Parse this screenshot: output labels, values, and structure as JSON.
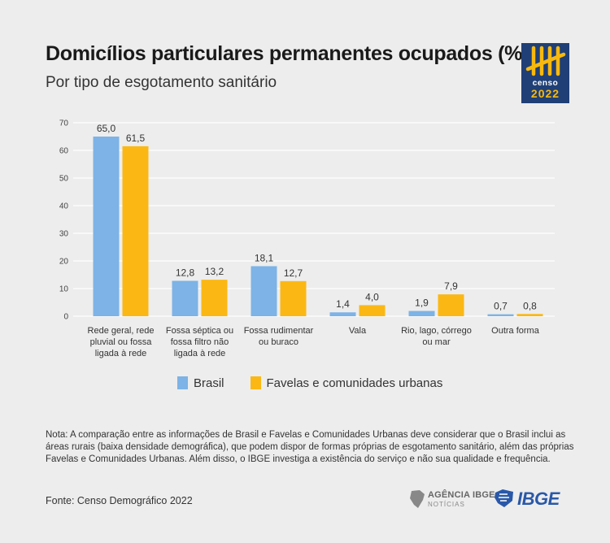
{
  "header": {
    "title": "Domicílios particulares permanentes ocupados (%)",
    "subtitle": "Por tipo de esgotamento sanitário"
  },
  "logo": {
    "censo_text": "censo",
    "censo_year": "2022"
  },
  "chart_data": {
    "type": "bar",
    "title": "Domicílios particulares permanentes ocupados (%)",
    "subtitle": "Por tipo de esgotamento sanitário",
    "categories": [
      [
        "Rede geral, rede",
        "pluvial ou fossa",
        "ligada à rede"
      ],
      [
        "Fossa séptica ou",
        "fossa filtro não",
        "ligada à rede"
      ],
      [
        "Fossa rudimentar",
        "ou buraco"
      ],
      [
        "Vala"
      ],
      [
        "Rio, lago, córrego",
        "ou mar"
      ],
      [
        "Outra forma"
      ]
    ],
    "series": [
      {
        "name": "Brasil",
        "values": [
          65.0,
          12.8,
          18.1,
          1.4,
          1.9,
          0.7
        ],
        "labels": [
          "65,0",
          "12,8",
          "18,1",
          "1,4",
          "1,9",
          "0,7"
        ],
        "color": "#7db3e6"
      },
      {
        "name": "Favelas e comunidades urbanas",
        "values": [
          61.5,
          13.2,
          12.7,
          4.0,
          7.9,
          0.8
        ],
        "labels": [
          "61,5",
          "13,2",
          "12,7",
          "4,0",
          "7,9",
          "0,8"
        ],
        "color": "#fbb814"
      }
    ],
    "yticks": [
      "0",
      "10",
      "20",
      "30",
      "40",
      "50",
      "60",
      "70"
    ],
    "ylim": [
      0,
      70
    ],
    "grid": true,
    "legend_position": "bottom"
  },
  "legend": {
    "brasil": "Brasil",
    "favelas": "Favelas e comunidades urbanas"
  },
  "footer": {
    "note": "Nota: A comparação entre as informações de Brasil e Favelas e Comunidades Urbanas deve considerar que o Brasil inclui as áreas rurais (baixa densidade demográfica), que podem dispor de formas próprias de esgotamento sanitário, além das próprias Favelas e Comunidades Urbanas. Além disso, o IBGE investiga a existência do serviço e não sua qualidade e frequência.",
    "source": "Fonte: Censo Demográfico 2022",
    "agencia_name": "AGÊNCIA IBGE",
    "agencia_sub": "NOTÍCIAS",
    "ibge_logo": "IBGE"
  }
}
